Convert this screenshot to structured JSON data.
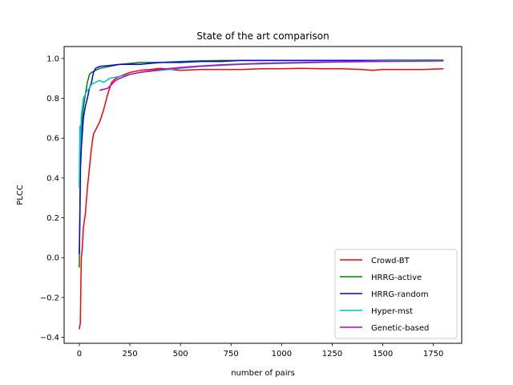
{
  "chart_data": {
    "type": "line",
    "title": "State of the art comparison",
    "xlabel": "number of pairs",
    "ylabel": "PLCC",
    "xlim": [
      -75,
      1890
    ],
    "ylim": [
      -0.43,
      1.06
    ],
    "xticks": [
      0,
      250,
      500,
      750,
      1000,
      1250,
      1500,
      1750
    ],
    "xtick_labels": [
      "0",
      "250",
      "500",
      "750",
      "1000",
      "1250",
      "1500",
      "1750"
    ],
    "yticks": [
      -0.4,
      -0.2,
      0.0,
      0.2,
      0.4,
      0.6,
      0.8,
      1.0
    ],
    "ytick_labels": [
      "−0.4",
      "−0.2",
      "0.0",
      "0.2",
      "0.4",
      "0.6",
      "0.8",
      "1.0"
    ],
    "grid": false,
    "legend_position": "lower-right",
    "series": [
      {
        "name": "Crowd-BT",
        "color": "#ff0000",
        "x": [
          0,
          5,
          8,
          10,
          15,
          20,
          30,
          40,
          50,
          60,
          70,
          80,
          100,
          120,
          140,
          160,
          180,
          200,
          250,
          300,
          350,
          400,
          500,
          600,
          700,
          800,
          900,
          1000,
          1100,
          1200,
          1300,
          1400,
          1450,
          1500,
          1600,
          1700,
          1800
        ],
        "y": [
          -0.36,
          -0.33,
          -0.1,
          0.0,
          0.05,
          0.15,
          0.22,
          0.35,
          0.45,
          0.55,
          0.62,
          0.64,
          0.68,
          0.74,
          0.82,
          0.88,
          0.9,
          0.91,
          0.93,
          0.94,
          0.945,
          0.95,
          0.94,
          0.945,
          0.945,
          0.945,
          0.948,
          0.948,
          0.95,
          0.948,
          0.948,
          0.945,
          0.94,
          0.945,
          0.945,
          0.945,
          0.948
        ]
      },
      {
        "name": "HRRG-active",
        "color": "#008000",
        "x": [
          0,
          5,
          10,
          15,
          20,
          30,
          40,
          50,
          60,
          80,
          100,
          150,
          200,
          300,
          400,
          500,
          600,
          700,
          800,
          1000,
          1200,
          1400,
          1600,
          1800
        ],
        "y": [
          -0.05,
          0.45,
          0.6,
          0.7,
          0.75,
          0.82,
          0.88,
          0.92,
          0.93,
          0.94,
          0.95,
          0.96,
          0.97,
          0.98,
          0.98,
          0.985,
          0.988,
          0.99,
          0.99,
          0.99,
          0.99,
          0.99,
          0.992,
          0.992
        ]
      },
      {
        "name": "HRRG-random",
        "color": "#0000ff",
        "x": [
          0,
          3,
          6,
          10,
          15,
          20,
          30,
          40,
          50,
          60,
          70,
          80,
          100,
          150,
          200,
          300,
          400,
          500,
          600,
          700,
          800,
          1000,
          1200,
          1400,
          1600,
          1800
        ],
        "y": [
          0.02,
          0.2,
          0.45,
          0.55,
          0.62,
          0.7,
          0.76,
          0.8,
          0.85,
          0.88,
          0.93,
          0.95,
          0.96,
          0.965,
          0.97,
          0.97,
          0.98,
          0.98,
          0.985,
          0.985,
          0.99,
          0.99,
          0.99,
          0.99,
          0.99,
          0.99
        ]
      },
      {
        "name": "Hyper-mst",
        "color": "#00bfbf",
        "x": [
          0,
          3,
          6,
          10,
          15,
          20,
          30,
          40,
          50,
          60,
          80,
          100,
          120,
          150,
          200,
          250,
          300,
          400,
          500,
          600,
          700,
          800,
          1000,
          1200,
          1400,
          1600,
          1800
        ],
        "y": [
          0.35,
          0.66,
          0.58,
          0.72,
          0.75,
          0.8,
          0.82,
          0.84,
          0.85,
          0.87,
          0.88,
          0.89,
          0.88,
          0.9,
          0.91,
          0.92,
          0.93,
          0.94,
          0.95,
          0.96,
          0.965,
          0.97,
          0.975,
          0.98,
          0.985,
          0.99,
          0.99
        ]
      },
      {
        "name": "Genetic-based",
        "color": "#bf00bf",
        "x": [
          100,
          120,
          140,
          160,
          180,
          200,
          250,
          300,
          400,
          500,
          600,
          700,
          800,
          900,
          1000,
          1200,
          1400,
          1600,
          1800
        ],
        "y": [
          0.84,
          0.845,
          0.85,
          0.87,
          0.89,
          0.9,
          0.92,
          0.93,
          0.945,
          0.955,
          0.962,
          0.968,
          0.972,
          0.976,
          0.978,
          0.982,
          0.984,
          0.986,
          0.988
        ]
      }
    ]
  }
}
